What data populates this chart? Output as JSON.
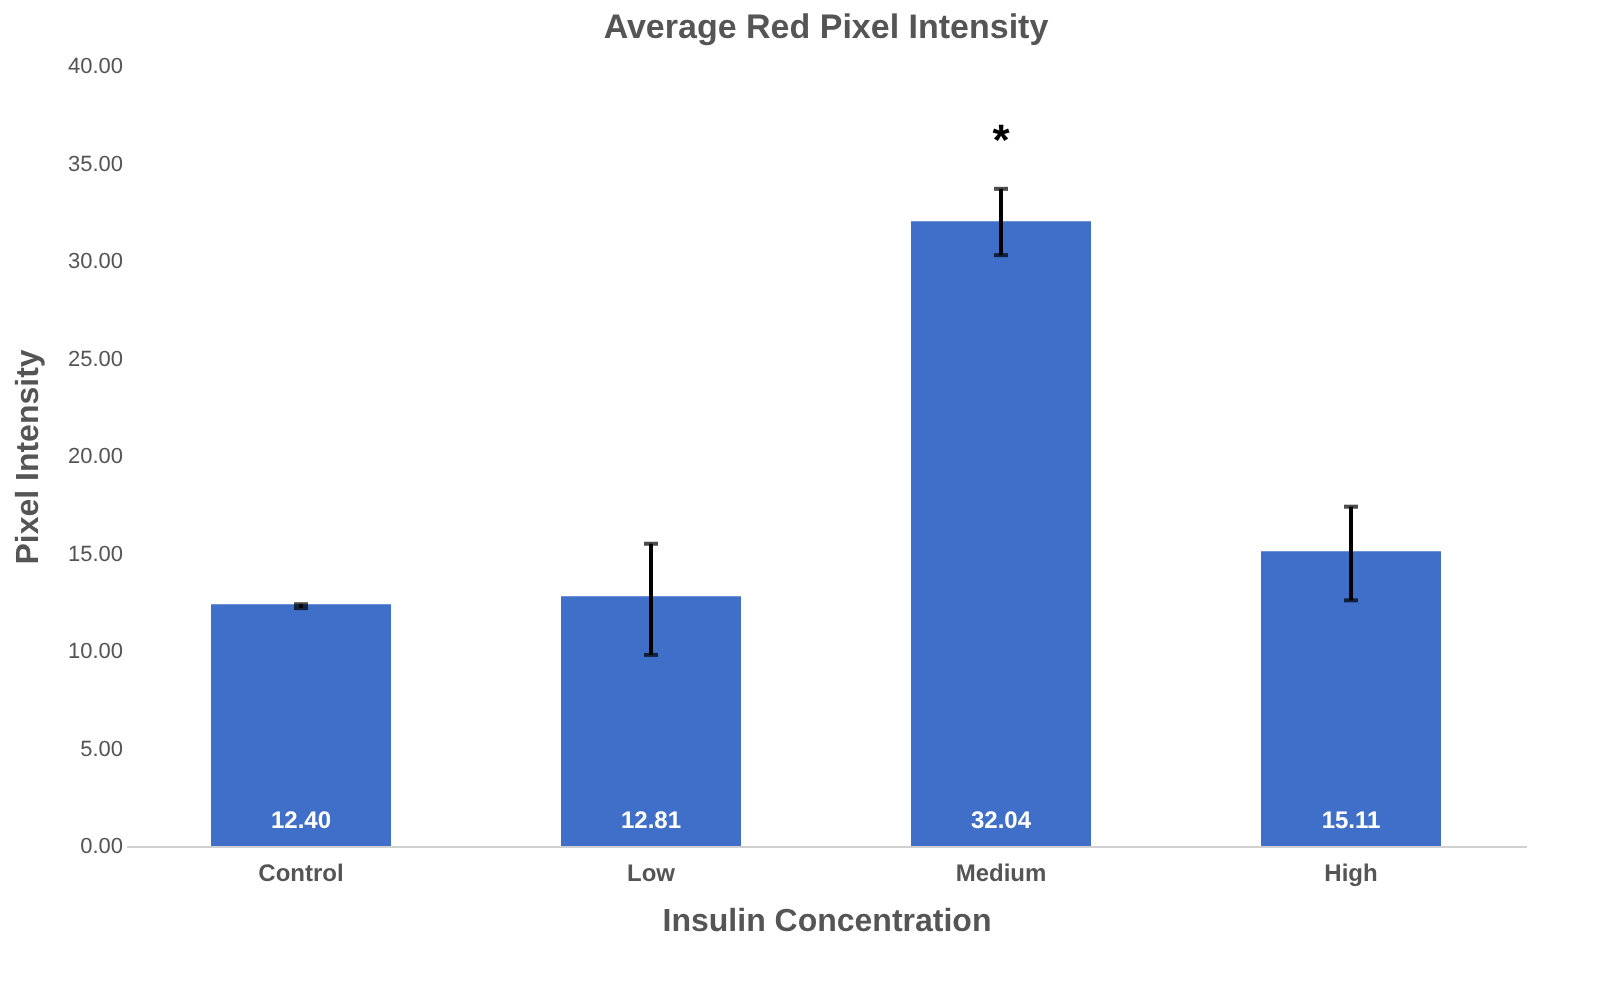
{
  "chart_data": {
    "type": "bar",
    "title": "Average Red Pixel Intensity",
    "xlabel": "Insulin Concentration",
    "ylabel": "Pixel Intensity",
    "categories": [
      "Control",
      "Low",
      "Medium",
      "High"
    ],
    "values": [
      12.4,
      12.81,
      32.04,
      15.11
    ],
    "color": "#3f6fc9",
    "errors": [
      [
        12.2,
        12.4
      ],
      [
        9.8,
        15.5
      ],
      [
        30.3,
        33.7
      ],
      [
        12.6,
        17.4
      ]
    ],
    "value_labels": [
      "12.40",
      "12.81",
      "32.04",
      "15.11"
    ],
    "annotations": [
      "*"
    ],
    "ylim": [
      0,
      40
    ],
    "yticks": [
      {
        "value": 0,
        "label": "0.00"
      },
      {
        "value": 5,
        "label": "5.00"
      },
      {
        "value": 10,
        "label": "10.00"
      },
      {
        "value": 15,
        "label": "15.00"
      },
      {
        "value": 20,
        "label": "20.00"
      },
      {
        "value": 25,
        "label": "25.00"
      },
      {
        "value": 30,
        "label": "30.00"
      },
      {
        "value": 35,
        "label": "35.00"
      },
      {
        "value": 40,
        "label": "40.00"
      }
    ],
    "grid": false
  }
}
